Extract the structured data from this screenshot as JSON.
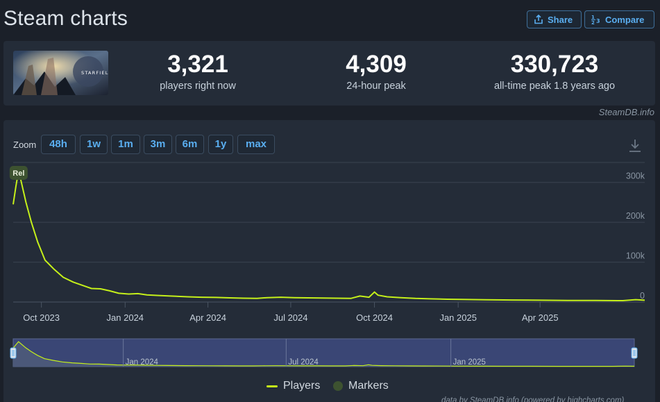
{
  "header": {
    "title": "Steam charts",
    "share_label": "Share",
    "compare_label": "Compare"
  },
  "stats": {
    "game_logo_text": "STARFIELD",
    "current": {
      "value": "3,321",
      "label": "players right now"
    },
    "peak24": {
      "value": "4,309",
      "label": "24-hour peak"
    },
    "alltime": {
      "value": "330,723",
      "label": "all-time peak 1.8 years ago"
    }
  },
  "credit": "SteamDB.info",
  "zoom": {
    "label": "Zoom",
    "options": [
      "48h",
      "1w",
      "1m",
      "3m",
      "6m",
      "1y",
      "max"
    ]
  },
  "legend": {
    "players": "Players",
    "markers": "Markers"
  },
  "footer_credit": "data by SteamDB.info (powered by highcharts.com)",
  "colors": {
    "line": "#c5f01a",
    "navigator_fill": "#3a4675",
    "marker": "#3d5230",
    "accent": "#5aaef0"
  },
  "icons": [
    "share-icon",
    "compare-icon",
    "download-icon"
  ],
  "chart_data": {
    "type": "line",
    "title": "",
    "ylabel": "",
    "xlabel": "",
    "ylim": [
      0,
      350000
    ],
    "yticks": [
      0,
      100000,
      200000,
      300000
    ],
    "ytick_labels": [
      "0",
      "100k",
      "200k",
      "300k"
    ],
    "xticks": [
      "2023-10-01",
      "2024-01-01",
      "2024-04-01",
      "2024-07-01",
      "2024-10-01",
      "2025-01-01",
      "2025-04-01"
    ],
    "xtick_labels": [
      "Oct 2023",
      "Jan 2024",
      "Apr 2024",
      "Jul 2024",
      "Oct 2024",
      "Jan 2025",
      "Apr 2025"
    ],
    "navigator_labels": [
      "Jan 2024",
      "Jul 2024",
      "Jan 2025"
    ],
    "grid": true,
    "legend": "bottom",
    "markers": [
      {
        "x": "2023-09-06",
        "label": "Rel"
      }
    ],
    "series": [
      {
        "name": "Players",
        "points": [
          [
            "2023-08-31",
            245000
          ],
          [
            "2023-09-03",
            290000
          ],
          [
            "2023-09-06",
            330723
          ],
          [
            "2023-09-09",
            300000
          ],
          [
            "2023-09-14",
            250000
          ],
          [
            "2023-09-20",
            200000
          ],
          [
            "2023-09-27",
            150000
          ],
          [
            "2023-10-05",
            105000
          ],
          [
            "2023-10-15",
            82000
          ],
          [
            "2023-10-25",
            62000
          ],
          [
            "2023-11-05",
            50000
          ],
          [
            "2023-11-15",
            42000
          ],
          [
            "2023-11-25",
            34000
          ],
          [
            "2023-12-05",
            33000
          ],
          [
            "2023-12-15",
            28000
          ],
          [
            "2023-12-25",
            22000
          ],
          [
            "2024-01-05",
            20000
          ],
          [
            "2024-01-15",
            21000
          ],
          [
            "2024-01-25",
            18000
          ],
          [
            "2024-02-05",
            16500
          ],
          [
            "2024-02-20",
            15000
          ],
          [
            "2024-03-10",
            13000
          ],
          [
            "2024-03-25",
            12000
          ],
          [
            "2024-04-10",
            11500
          ],
          [
            "2024-04-25",
            10500
          ],
          [
            "2024-05-10",
            9500
          ],
          [
            "2024-05-25",
            9000
          ],
          [
            "2024-06-05",
            11000
          ],
          [
            "2024-06-20",
            12000
          ],
          [
            "2024-07-05",
            11000
          ],
          [
            "2024-07-20",
            10500
          ],
          [
            "2024-08-05",
            10000
          ],
          [
            "2024-08-20",
            9500
          ],
          [
            "2024-09-05",
            9000
          ],
          [
            "2024-09-15",
            15000
          ],
          [
            "2024-09-25",
            12000
          ],
          [
            "2024-10-01",
            25000
          ],
          [
            "2024-10-05",
            17000
          ],
          [
            "2024-10-15",
            13000
          ],
          [
            "2024-10-30",
            11000
          ],
          [
            "2024-11-15",
            9000
          ],
          [
            "2024-12-01",
            8000
          ],
          [
            "2024-12-20",
            7000
          ],
          [
            "2025-01-05",
            6500
          ],
          [
            "2025-02-01",
            5500
          ],
          [
            "2025-03-01",
            5000
          ],
          [
            "2025-04-01",
            4500
          ],
          [
            "2025-05-01",
            4000
          ],
          [
            "2025-06-01",
            3800
          ],
          [
            "2025-07-01",
            3500
          ],
          [
            "2025-07-15",
            6000
          ],
          [
            "2025-07-25",
            4500
          ]
        ]
      }
    ]
  }
}
